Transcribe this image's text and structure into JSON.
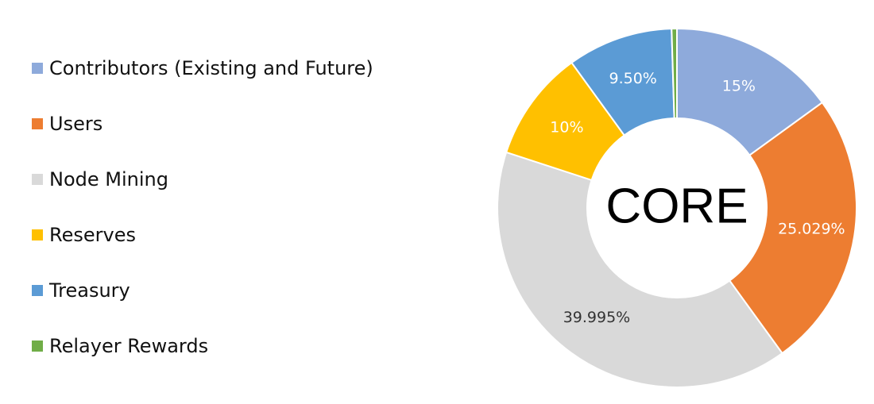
{
  "chart_data": {
    "type": "donut",
    "center_label": "CORE",
    "categories": [
      "Contributors (Existing and Future)",
      "Users",
      "Node Mining",
      "Reserves",
      "Treasury",
      "Relayer Rewards"
    ],
    "values": [
      15,
      25.029,
      39.995,
      10,
      9.5,
      0.476
    ],
    "value_labels": [
      "15%",
      "25.029%",
      "39.995%",
      "10%",
      "9.50%",
      null
    ],
    "colors": [
      "#8eaadb",
      "#ed7d31",
      "#d9d9d9",
      "#ffc000",
      "#5b9bd5",
      "#70ad47"
    ],
    "legend": "left"
  }
}
